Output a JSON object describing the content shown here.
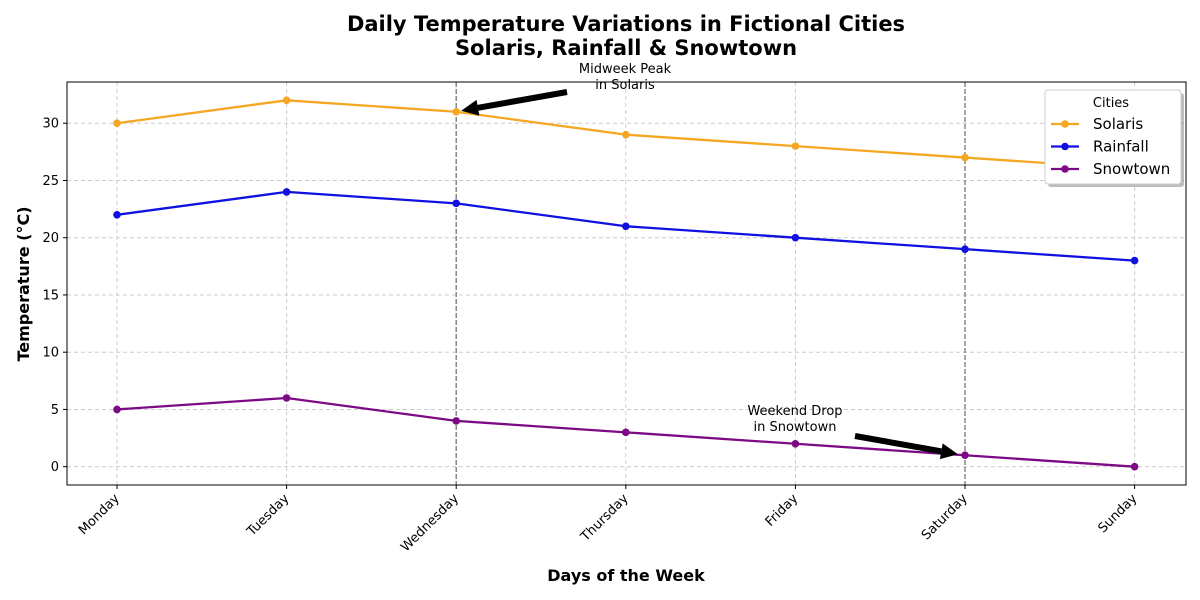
{
  "chart_data": {
    "type": "line",
    "title": "Daily Temperature Variations in Fictional Cities",
    "subtitle": "Solaris, Rainfall & Snowtown",
    "xlabel": "Days of the Week",
    "ylabel": "Temperature (°C)",
    "categories": [
      "Monday",
      "Tuesday",
      "Wednesday",
      "Thursday",
      "Friday",
      "Saturday",
      "Sunday"
    ],
    "ylim": [
      -1.6,
      33.6
    ],
    "yticks": [
      0,
      5,
      10,
      15,
      20,
      25,
      30
    ],
    "grid": true,
    "legend": {
      "title": "Cities",
      "placement": "top-right"
    },
    "series": [
      {
        "name": "Solaris",
        "color": "#f5a623",
        "values": [
          30,
          32,
          31,
          29,
          28,
          27,
          26
        ]
      },
      {
        "name": "Rainfall",
        "color": "#1010e0",
        "values": [
          22,
          24,
          23,
          21,
          20,
          19,
          18
        ]
      },
      {
        "name": "Snowtown",
        "color": "#7d0a85",
        "values": [
          5,
          6,
          4,
          3,
          2,
          1,
          0
        ]
      }
    ],
    "vlines": [
      "Wednesday",
      "Saturday"
    ],
    "annotations": [
      {
        "lines": [
          "Midweek Peak",
          "in Solaris"
        ],
        "x": "Wednesday",
        "y": 31
      },
      {
        "lines": [
          "Weekend Drop",
          "in Snowtown"
        ],
        "x": "Saturday",
        "y": 1
      }
    ]
  }
}
